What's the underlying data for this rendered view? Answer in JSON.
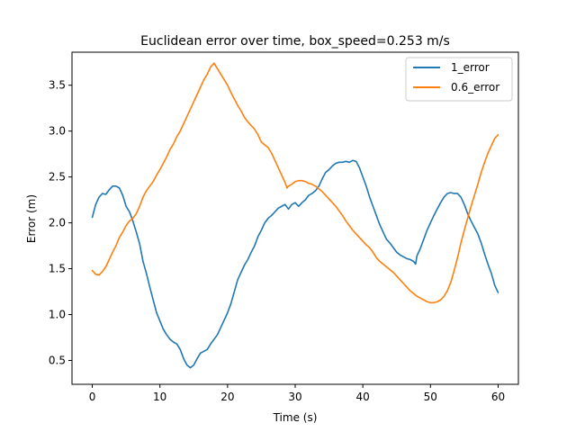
{
  "chart_data": {
    "type": "line",
    "title": "Euclidean error over time, box_speed=0.253 m/s",
    "xlabel": "Time (s)",
    "ylabel": "Error (m)",
    "xlim": [
      -3,
      63
    ],
    "ylim": [
      0.24,
      3.86
    ],
    "xticks": [
      0,
      10,
      20,
      30,
      40,
      50,
      60
    ],
    "yticks": [
      0.5,
      1.0,
      1.5,
      2.0,
      2.5,
      3.0,
      3.5
    ],
    "grid": false,
    "legend_position": "top-right",
    "series": [
      {
        "name": "1_error",
        "color": "#1f77b4",
        "points": [
          [
            0.0,
            2.06
          ],
          [
            0.5,
            2.2
          ],
          [
            1.0,
            2.28
          ],
          [
            1.5,
            2.32
          ],
          [
            2.0,
            2.31
          ],
          [
            2.5,
            2.36
          ],
          [
            3.0,
            2.4
          ],
          [
            3.5,
            2.4
          ],
          [
            4.0,
            2.38
          ],
          [
            4.5,
            2.3
          ],
          [
            5.0,
            2.18
          ],
          [
            5.5,
            2.12
          ],
          [
            6.0,
            2.02
          ],
          [
            6.5,
            1.9
          ],
          [
            7.0,
            1.77
          ],
          [
            7.5,
            1.58
          ],
          [
            8.0,
            1.45
          ],
          [
            8.5,
            1.3
          ],
          [
            9.0,
            1.16
          ],
          [
            9.5,
            1.02
          ],
          [
            10.0,
            0.93
          ],
          [
            10.5,
            0.84
          ],
          [
            11.0,
            0.78
          ],
          [
            11.5,
            0.73
          ],
          [
            12.0,
            0.7
          ],
          [
            12.5,
            0.68
          ],
          [
            13.0,
            0.62
          ],
          [
            13.5,
            0.52
          ],
          [
            14.0,
            0.45
          ],
          [
            14.5,
            0.42
          ],
          [
            15.0,
            0.45
          ],
          [
            15.5,
            0.52
          ],
          [
            16.0,
            0.58
          ],
          [
            16.5,
            0.6
          ],
          [
            17.0,
            0.62
          ],
          [
            17.5,
            0.68
          ],
          [
            18.0,
            0.73
          ],
          [
            18.5,
            0.78
          ],
          [
            19.0,
            0.86
          ],
          [
            19.5,
            0.94
          ],
          [
            20.0,
            1.02
          ],
          [
            20.5,
            1.12
          ],
          [
            21.0,
            1.25
          ],
          [
            21.5,
            1.38
          ],
          [
            22.0,
            1.46
          ],
          [
            22.5,
            1.54
          ],
          [
            23.0,
            1.6
          ],
          [
            23.5,
            1.68
          ],
          [
            24.0,
            1.75
          ],
          [
            24.5,
            1.85
          ],
          [
            25.0,
            1.92
          ],
          [
            25.5,
            2.0
          ],
          [
            26.0,
            2.05
          ],
          [
            26.5,
            2.08
          ],
          [
            27.0,
            2.12
          ],
          [
            27.5,
            2.16
          ],
          [
            28.0,
            2.18
          ],
          [
            28.5,
            2.2
          ],
          [
            29.0,
            2.15
          ],
          [
            29.5,
            2.2
          ],
          [
            30.0,
            2.22
          ],
          [
            30.5,
            2.18
          ],
          [
            31.0,
            2.22
          ],
          [
            31.5,
            2.25
          ],
          [
            32.0,
            2.3
          ],
          [
            32.5,
            2.32
          ],
          [
            33.0,
            2.35
          ],
          [
            33.5,
            2.4
          ],
          [
            34.0,
            2.48
          ],
          [
            34.5,
            2.55
          ],
          [
            35.0,
            2.58
          ],
          [
            35.5,
            2.62
          ],
          [
            36.0,
            2.65
          ],
          [
            36.5,
            2.66
          ],
          [
            37.0,
            2.66
          ],
          [
            37.5,
            2.67
          ],
          [
            38.0,
            2.66
          ],
          [
            38.5,
            2.68
          ],
          [
            39.0,
            2.67
          ],
          [
            39.5,
            2.6
          ],
          [
            40.0,
            2.5
          ],
          [
            40.5,
            2.4
          ],
          [
            41.0,
            2.28
          ],
          [
            41.5,
            2.18
          ],
          [
            42.0,
            2.08
          ],
          [
            42.5,
            1.98
          ],
          [
            43.0,
            1.9
          ],
          [
            43.5,
            1.82
          ],
          [
            44.0,
            1.78
          ],
          [
            44.5,
            1.73
          ],
          [
            45.0,
            1.68
          ],
          [
            45.5,
            1.65
          ],
          [
            46.0,
            1.63
          ],
          [
            46.5,
            1.61
          ],
          [
            47.0,
            1.6
          ],
          [
            47.5,
            1.58
          ],
          [
            47.8,
            1.55
          ],
          [
            48.0,
            1.64
          ],
          [
            48.5,
            1.72
          ],
          [
            49.0,
            1.82
          ],
          [
            49.5,
            1.92
          ],
          [
            50.0,
            2.0
          ],
          [
            50.5,
            2.08
          ],
          [
            51.0,
            2.15
          ],
          [
            51.5,
            2.22
          ],
          [
            52.0,
            2.28
          ],
          [
            52.5,
            2.32
          ],
          [
            53.0,
            2.33
          ],
          [
            53.5,
            2.32
          ],
          [
            54.0,
            2.32
          ],
          [
            54.5,
            2.28
          ],
          [
            55.0,
            2.2
          ],
          [
            55.5,
            2.1
          ],
          [
            56.0,
            2.02
          ],
          [
            56.5,
            1.95
          ],
          [
            57.0,
            1.88
          ],
          [
            57.5,
            1.78
          ],
          [
            58.0,
            1.66
          ],
          [
            58.5,
            1.55
          ],
          [
            59.0,
            1.45
          ],
          [
            59.5,
            1.32
          ],
          [
            60.0,
            1.24
          ]
        ]
      },
      {
        "name": "0.6_error",
        "color": "#ff7f0e",
        "points": [
          [
            0.0,
            1.48
          ],
          [
            0.5,
            1.44
          ],
          [
            1.0,
            1.43
          ],
          [
            1.5,
            1.47
          ],
          [
            2.0,
            1.52
          ],
          [
            2.5,
            1.6
          ],
          [
            3.0,
            1.68
          ],
          [
            3.5,
            1.75
          ],
          [
            4.0,
            1.84
          ],
          [
            4.5,
            1.9
          ],
          [
            5.0,
            1.97
          ],
          [
            5.5,
            2.02
          ],
          [
            6.0,
            2.05
          ],
          [
            6.5,
            2.1
          ],
          [
            7.0,
            2.18
          ],
          [
            7.5,
            2.28
          ],
          [
            8.0,
            2.35
          ],
          [
            8.5,
            2.4
          ],
          [
            9.0,
            2.45
          ],
          [
            9.5,
            2.52
          ],
          [
            10.0,
            2.58
          ],
          [
            10.5,
            2.65
          ],
          [
            11.0,
            2.72
          ],
          [
            11.5,
            2.8
          ],
          [
            12.0,
            2.86
          ],
          [
            12.5,
            2.94
          ],
          [
            13.0,
            3.0
          ],
          [
            13.5,
            3.08
          ],
          [
            14.0,
            3.16
          ],
          [
            14.5,
            3.24
          ],
          [
            15.0,
            3.32
          ],
          [
            15.5,
            3.4
          ],
          [
            16.0,
            3.48
          ],
          [
            16.5,
            3.56
          ],
          [
            17.0,
            3.62
          ],
          [
            17.5,
            3.7
          ],
          [
            18.0,
            3.74
          ],
          [
            18.5,
            3.68
          ],
          [
            19.0,
            3.62
          ],
          [
            19.5,
            3.56
          ],
          [
            20.0,
            3.5
          ],
          [
            20.5,
            3.42
          ],
          [
            21.0,
            3.35
          ],
          [
            21.5,
            3.28
          ],
          [
            22.0,
            3.22
          ],
          [
            22.5,
            3.15
          ],
          [
            23.0,
            3.1
          ],
          [
            23.5,
            3.06
          ],
          [
            24.0,
            3.02
          ],
          [
            24.5,
            2.96
          ],
          [
            25.0,
            2.88
          ],
          [
            25.5,
            2.85
          ],
          [
            26.0,
            2.82
          ],
          [
            26.5,
            2.76
          ],
          [
            27.0,
            2.68
          ],
          [
            27.5,
            2.6
          ],
          [
            28.0,
            2.52
          ],
          [
            28.5,
            2.44
          ],
          [
            28.8,
            2.38
          ],
          [
            29.0,
            2.4
          ],
          [
            29.5,
            2.42
          ],
          [
            30.0,
            2.45
          ],
          [
            30.5,
            2.46
          ],
          [
            31.0,
            2.46
          ],
          [
            31.5,
            2.45
          ],
          [
            32.0,
            2.43
          ],
          [
            32.5,
            2.42
          ],
          [
            33.0,
            2.4
          ],
          [
            33.5,
            2.37
          ],
          [
            34.0,
            2.34
          ],
          [
            34.5,
            2.3
          ],
          [
            35.0,
            2.26
          ],
          [
            35.5,
            2.22
          ],
          [
            36.0,
            2.18
          ],
          [
            36.5,
            2.13
          ],
          [
            37.0,
            2.08
          ],
          [
            37.5,
            2.02
          ],
          [
            38.0,
            1.97
          ],
          [
            38.5,
            1.92
          ],
          [
            39.0,
            1.88
          ],
          [
            39.5,
            1.84
          ],
          [
            40.0,
            1.8
          ],
          [
            40.5,
            1.76
          ],
          [
            41.0,
            1.73
          ],
          [
            41.5,
            1.68
          ],
          [
            42.0,
            1.62
          ],
          [
            42.5,
            1.58
          ],
          [
            43.0,
            1.55
          ],
          [
            43.5,
            1.52
          ],
          [
            44.0,
            1.49
          ],
          [
            44.5,
            1.46
          ],
          [
            45.0,
            1.42
          ],
          [
            45.5,
            1.38
          ],
          [
            46.0,
            1.34
          ],
          [
            46.5,
            1.3
          ],
          [
            47.0,
            1.26
          ],
          [
            47.5,
            1.23
          ],
          [
            48.0,
            1.2
          ],
          [
            48.5,
            1.18
          ],
          [
            49.0,
            1.16
          ],
          [
            49.5,
            1.14
          ],
          [
            50.0,
            1.13
          ],
          [
            50.5,
            1.13
          ],
          [
            51.0,
            1.14
          ],
          [
            51.5,
            1.16
          ],
          [
            52.0,
            1.2
          ],
          [
            52.5,
            1.26
          ],
          [
            53.0,
            1.35
          ],
          [
            53.5,
            1.48
          ],
          [
            54.0,
            1.62
          ],
          [
            54.5,
            1.78
          ],
          [
            55.0,
            1.92
          ],
          [
            55.5,
            2.05
          ],
          [
            56.0,
            2.18
          ],
          [
            56.5,
            2.3
          ],
          [
            57.0,
            2.42
          ],
          [
            57.5,
            2.55
          ],
          [
            58.0,
            2.66
          ],
          [
            58.5,
            2.76
          ],
          [
            59.0,
            2.84
          ],
          [
            59.5,
            2.92
          ],
          [
            60.0,
            2.96
          ]
        ]
      }
    ]
  }
}
